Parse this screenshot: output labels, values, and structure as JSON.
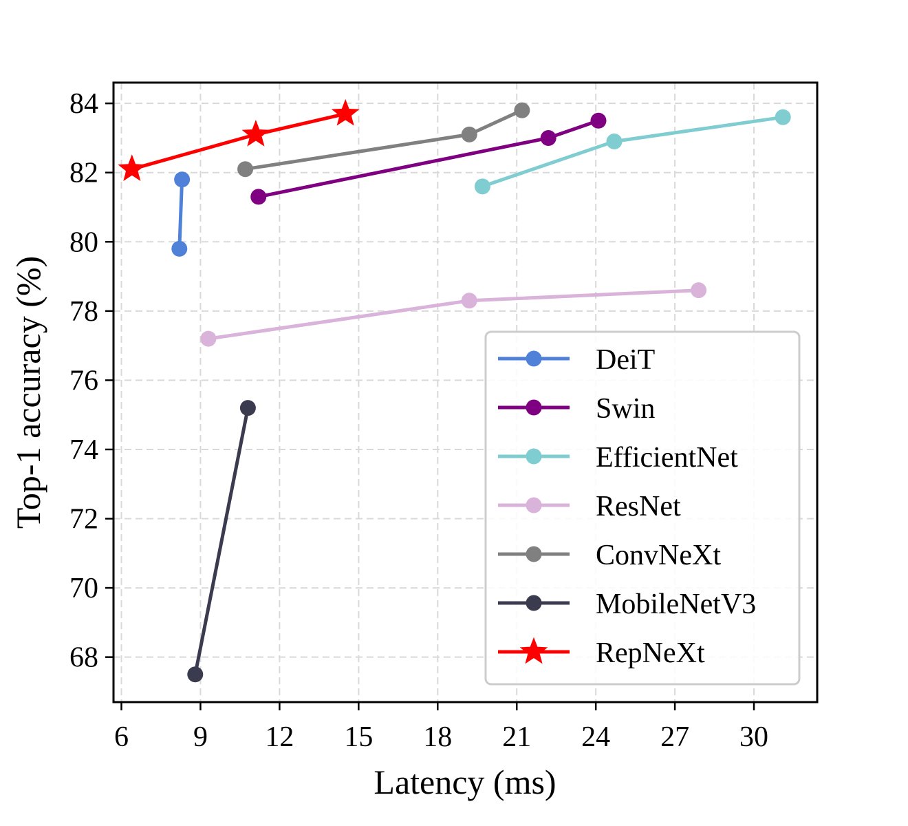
{
  "chart_data": {
    "type": "line",
    "xlabel": "Latency (ms)",
    "ylabel": "Top-1 accuracy (%)",
    "xlim": [
      5.7,
      32.4
    ],
    "ylim": [
      66.7,
      84.6
    ],
    "xticks": [
      6,
      9,
      12,
      15,
      18,
      21,
      24,
      27,
      30
    ],
    "yticks": [
      68,
      70,
      72,
      74,
      76,
      78,
      80,
      82,
      84
    ],
    "grid": true,
    "legend_position": "lower-right",
    "series": [
      {
        "name": "DeiT",
        "color": "#4f81d9",
        "marker": "circle",
        "x": [
          8.2,
          8.3
        ],
        "y": [
          79.8,
          81.8
        ]
      },
      {
        "name": "Swin",
        "color": "#7f0080",
        "marker": "circle",
        "x": [
          11.2,
          22.2,
          24.1
        ],
        "y": [
          81.3,
          83.0,
          83.5
        ]
      },
      {
        "name": "EfficientNet",
        "color": "#80cdd1",
        "marker": "circle",
        "x": [
          19.7,
          24.7,
          31.1
        ],
        "y": [
          81.6,
          82.9,
          83.6
        ]
      },
      {
        "name": "ResNet",
        "color": "#d9b3d9",
        "marker": "circle",
        "x": [
          9.3,
          19.2,
          27.9
        ],
        "y": [
          77.2,
          78.3,
          78.6
        ]
      },
      {
        "name": "ConvNeXt",
        "color": "#808080",
        "marker": "circle",
        "x": [
          10.7,
          19.2,
          21.2
        ],
        "y": [
          82.1,
          83.1,
          83.8
        ]
      },
      {
        "name": "MobileNetV3",
        "color": "#3b3b4f",
        "marker": "circle",
        "x": [
          8.8,
          10.8
        ],
        "y": [
          67.5,
          75.2
        ]
      },
      {
        "name": "RepNeXt",
        "color": "#ff0000",
        "marker": "star",
        "x": [
          6.4,
          11.1,
          14.5
        ],
        "y": [
          82.1,
          83.1,
          83.7
        ]
      }
    ]
  }
}
